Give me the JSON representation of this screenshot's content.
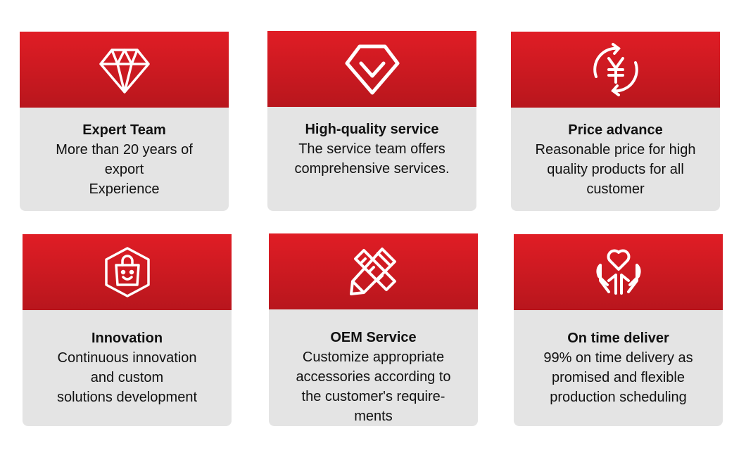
{
  "accent_color": "#d91c24",
  "cards": [
    {
      "icon": "diamond-icon",
      "title": "Expert Team",
      "desc": "More than 20 years of\nexport\nExperience"
    },
    {
      "icon": "gem-check-icon",
      "title": "High-quality service",
      "desc": "The service team offers\ncomprehensive services."
    },
    {
      "icon": "yen-cycle-icon",
      "title": "Price advance",
      "desc": "Reasonable price for high\nquality products for all\ncustomer"
    },
    {
      "icon": "shopping-bag-icon",
      "title": "Innovation",
      "desc": "Continuous innovation\nand custom\nsolutions development"
    },
    {
      "icon": "pencil-ruler-icon",
      "title": "OEM Service",
      "desc": "Customize appropriate\naccessories according to\nthe customer's require-\nments"
    },
    {
      "icon": "heart-hands-icon",
      "title": "On time deliver",
      "desc": "99% on time delivery as\npromised and flexible\nproduction scheduling"
    }
  ]
}
